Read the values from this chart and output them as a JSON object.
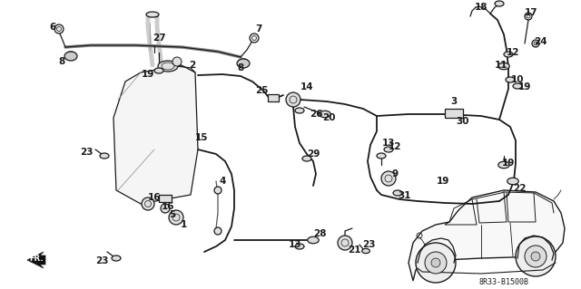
{
  "bg_color": "#ffffff",
  "fig_width": 6.4,
  "fig_height": 3.19,
  "diagram_code": "8R33-B1500B",
  "color": "#1a1a1a",
  "lw_tube": 1.3,
  "lw_part": 0.9
}
